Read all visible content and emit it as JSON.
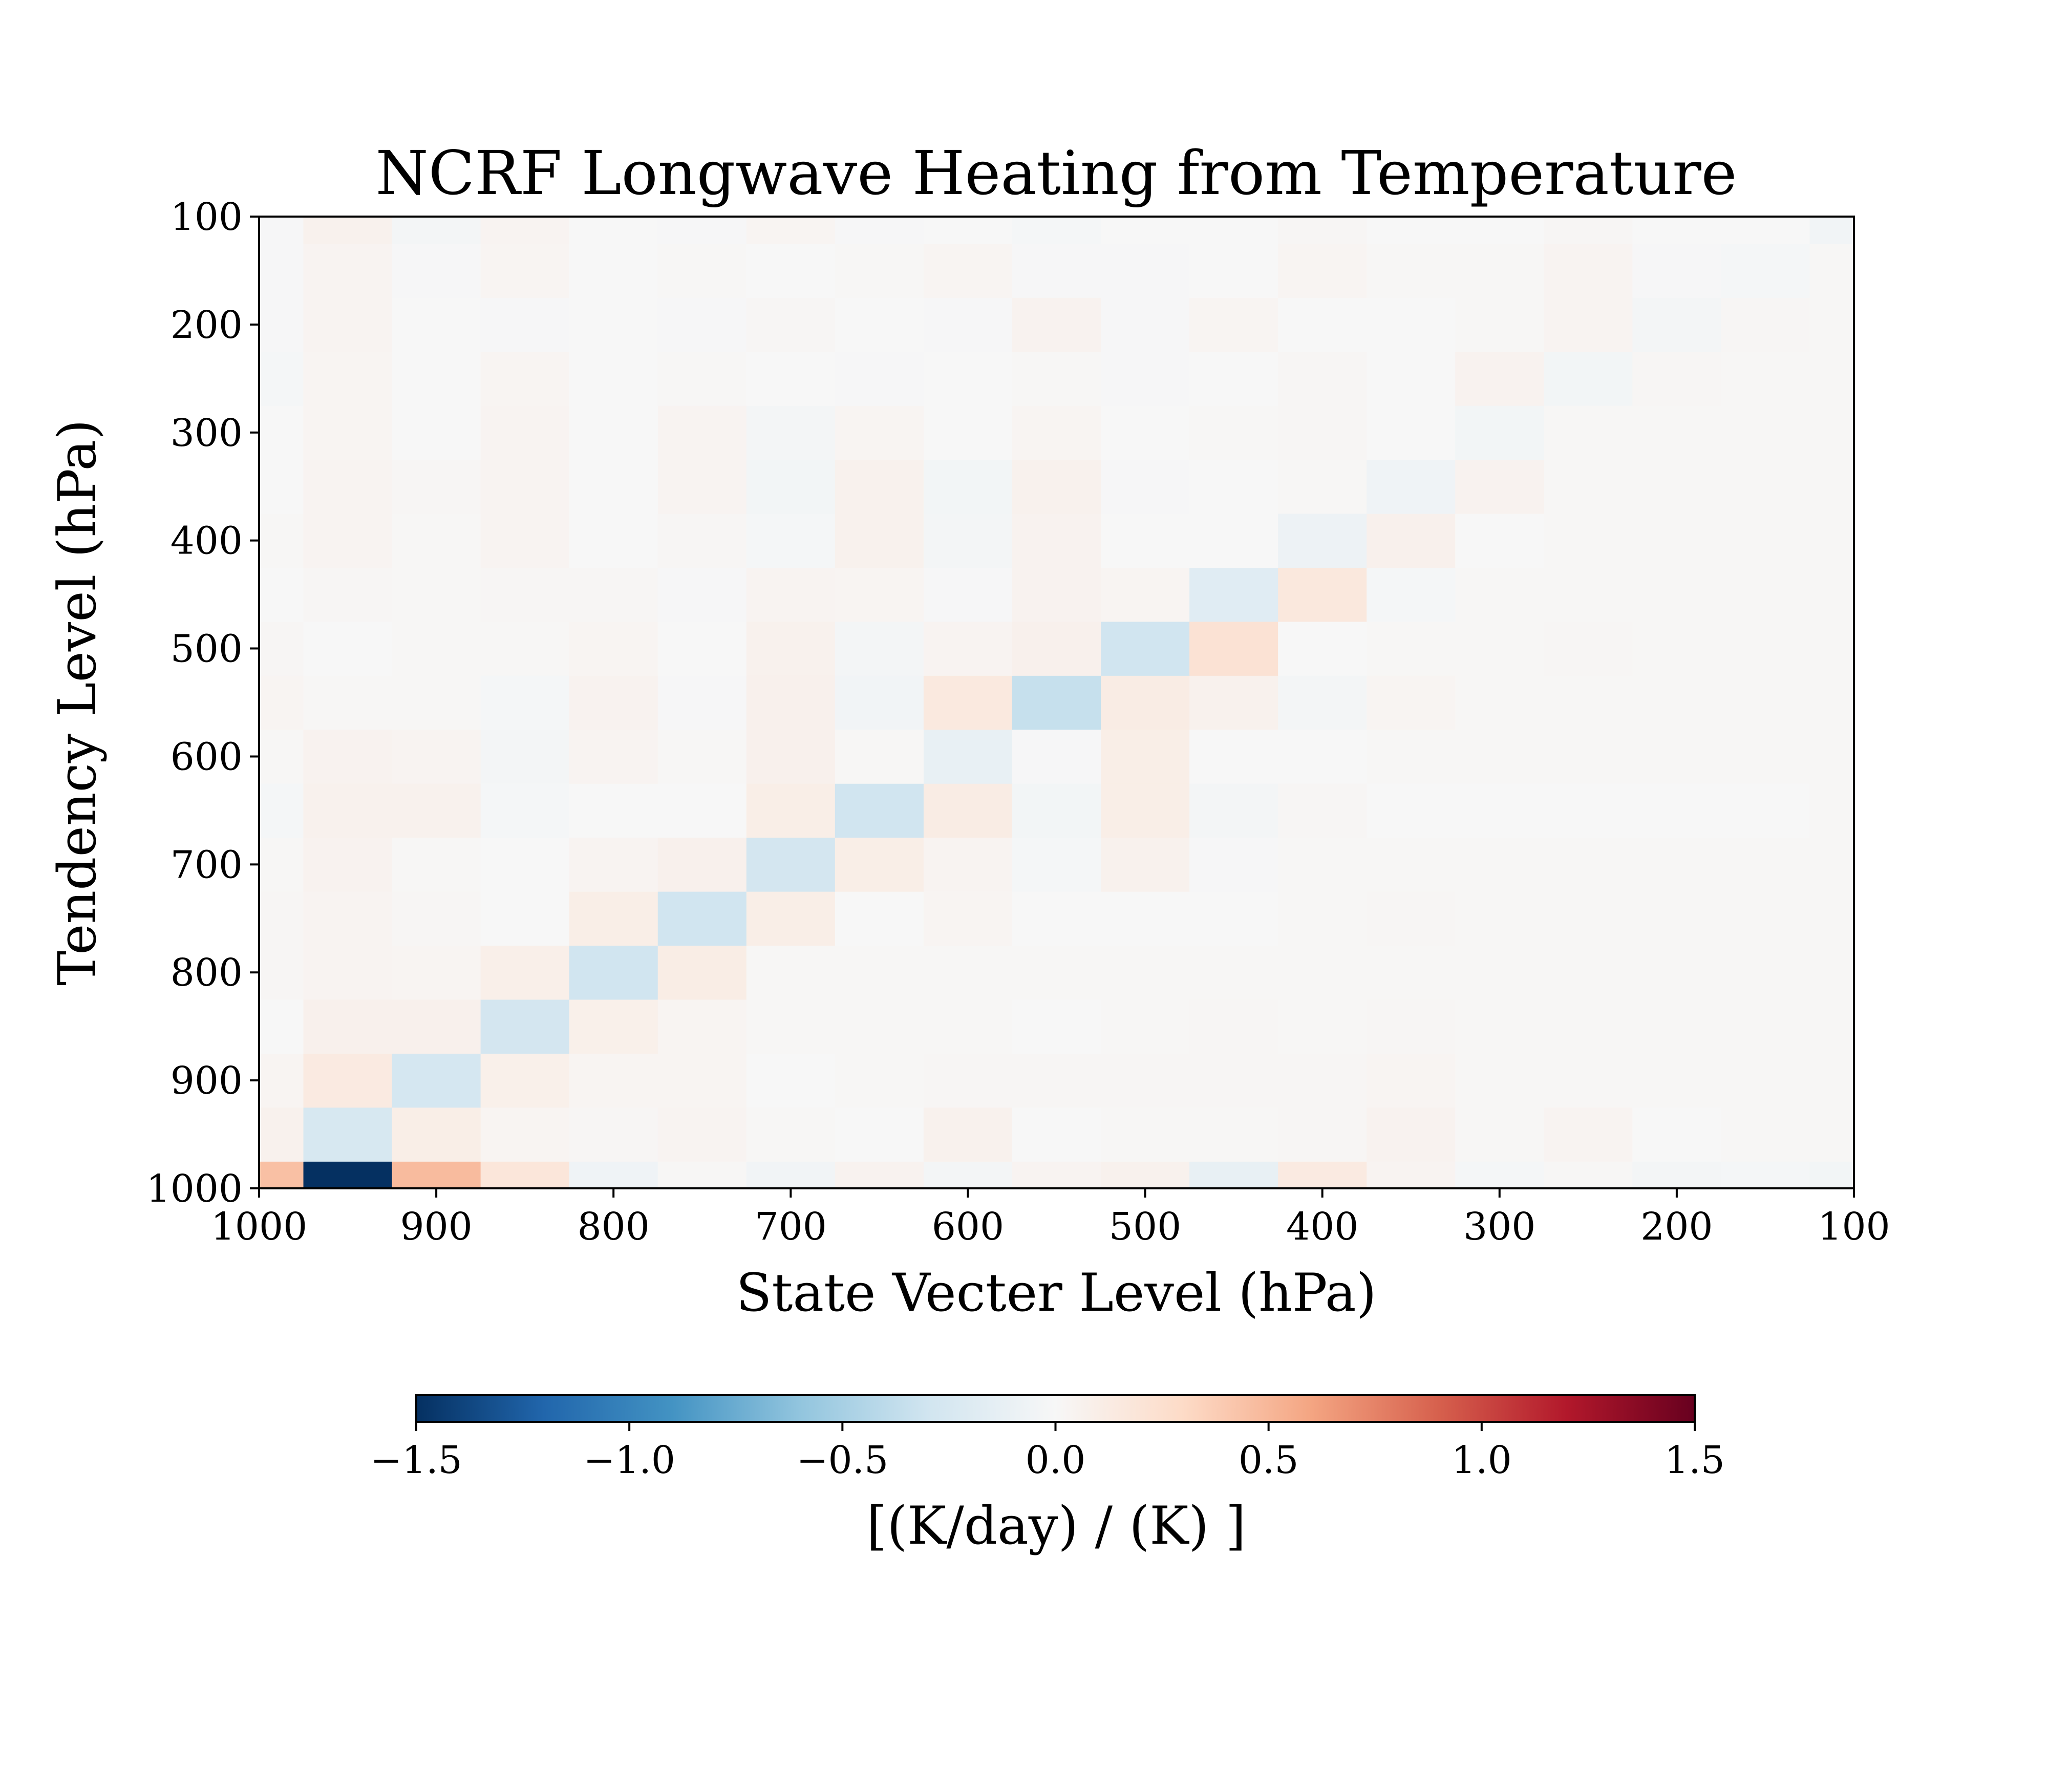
{
  "chart_data": {
    "type": "heatmap",
    "title": "NCRF Longwave Heating from Temperature",
    "xlabel": "State Vecter Level (hPa)",
    "ylabel": "Tendency Level (hPa)",
    "x_levels": [
      1000,
      950,
      900,
      850,
      800,
      750,
      700,
      650,
      600,
      550,
      500,
      450,
      400,
      350,
      300,
      250,
      200,
      150,
      100
    ],
    "y_levels": [
      1000,
      950,
      900,
      850,
      800,
      750,
      700,
      650,
      600,
      550,
      500,
      450,
      400,
      350,
      300,
      250,
      200,
      150,
      100
    ],
    "xlim": [
      1000,
      100
    ],
    "ylim": [
      1000,
      100
    ],
    "x_ticks": [
      "1000",
      "900",
      "800",
      "700",
      "600",
      "500",
      "400",
      "300",
      "200",
      "100"
    ],
    "y_ticks": [
      "100",
      "200",
      "300",
      "400",
      "500",
      "600",
      "700",
      "800",
      "900",
      "1000"
    ],
    "colormap": "RdBu_r",
    "vmin": -1.5,
    "vmax": 1.5,
    "colorbar": {
      "label": "[(K/day) / (K) ]",
      "ticks": [
        "−1.5",
        "−1.0",
        "−0.5",
        "0.0",
        "0.5",
        "1.0",
        "1.5"
      ],
      "orientation": "horizontal",
      "placement": "bottom"
    },
    "values": [
      [
        0.45,
        -1.5,
        0.48,
        0.18,
        -0.06,
        0.01,
        -0.05,
        0.05,
        -0.03,
        0.04,
        0.06,
        -0.12,
        0.14,
        0.04,
        -0.02,
        0.01,
        -0.03,
        -0.02,
        -0.04
      ],
      [
        0.06,
        -0.25,
        0.1,
        0.03,
        0.02,
        0.04,
        0.01,
        0.0,
        0.06,
        0.0,
        0.01,
        0.01,
        0.02,
        0.05,
        0.01,
        0.04,
        0.0,
        0.01,
        0.01
      ],
      [
        0.03,
        0.14,
        -0.27,
        0.08,
        0.03,
        0.03,
        0.0,
        0.01,
        0.02,
        0.02,
        0.02,
        0.02,
        0.02,
        0.03,
        0.01,
        0.01,
        0.01,
        0.01,
        0.01
      ],
      [
        0.0,
        0.07,
        0.07,
        -0.28,
        0.08,
        0.03,
        0.01,
        0.01,
        0.01,
        0.0,
        0.01,
        0.02,
        0.01,
        0.02,
        0.01,
        0.01,
        0.01,
        0.01,
        0.01
      ],
      [
        0.02,
        0.04,
        0.03,
        0.09,
        -0.3,
        0.11,
        0.01,
        0.01,
        0.01,
        0.01,
        0.01,
        0.01,
        0.01,
        0.01,
        0.01,
        0.01,
        0.01,
        0.01,
        0.01
      ],
      [
        0.02,
        0.04,
        0.02,
        0.0,
        0.1,
        -0.3,
        0.1,
        0.0,
        0.03,
        0.0,
        0.0,
        0.0,
        0.01,
        0.02,
        0.01,
        0.01,
        0.01,
        0.01,
        0.01
      ],
      [
        0.01,
        0.05,
        0.01,
        0.0,
        0.04,
        0.07,
        -0.28,
        0.1,
        0.04,
        -0.02,
        0.06,
        -0.01,
        0.01,
        0.01,
        0.01,
        0.01,
        0.01,
        0.01,
        0.01
      ],
      [
        -0.02,
        0.06,
        0.06,
        -0.02,
        0.0,
        0.0,
        0.1,
        -0.3,
        0.12,
        -0.04,
        0.1,
        -0.03,
        0.02,
        0.0,
        0.0,
        0.0,
        0.0,
        0.0,
        0.01
      ],
      [
        0.01,
        0.05,
        0.04,
        -0.03,
        0.04,
        0.01,
        0.07,
        0.01,
        -0.12,
        -0.01,
        0.1,
        0.0,
        0.0,
        0.01,
        0.01,
        0.01,
        0.01,
        0.01,
        0.01
      ],
      [
        0.03,
        0.01,
        0.01,
        -0.02,
        0.05,
        -0.01,
        0.07,
        -0.05,
        0.15,
        -0.35,
        0.12,
        0.06,
        -0.03,
        0.03,
        0.01,
        0.01,
        0.01,
        0.01,
        0.01
      ],
      [
        0.02,
        0.0,
        0.01,
        0.01,
        0.03,
        0.0,
        0.06,
        -0.03,
        0.04,
        0.07,
        -0.3,
        0.22,
        0.0,
        0.01,
        0.01,
        0.02,
        0.01,
        0.01,
        0.01
      ],
      [
        0.0,
        0.02,
        0.01,
        0.02,
        0.02,
        -0.01,
        0.04,
        0.03,
        -0.01,
        0.05,
        0.03,
        -0.18,
        0.16,
        -0.02,
        0.01,
        0.01,
        0.01,
        0.01,
        0.01
      ],
      [
        0.01,
        0.04,
        0.01,
        0.04,
        0.0,
        0.02,
        -0.02,
        0.06,
        -0.03,
        0.05,
        0.0,
        0.0,
        -0.08,
        0.07,
        0.0,
        0.01,
        0.01,
        0.01,
        0.01
      ],
      [
        0.0,
        0.04,
        0.02,
        0.04,
        0.0,
        0.04,
        -0.04,
        0.06,
        -0.04,
        0.06,
        -0.01,
        0.0,
        0.01,
        -0.06,
        0.05,
        0.01,
        0.01,
        0.01,
        0.01
      ],
      [
        0.0,
        0.03,
        0.0,
        0.04,
        0.0,
        0.04,
        -0.03,
        0.03,
        0.0,
        0.03,
        0.0,
        0.01,
        0.02,
        0.0,
        -0.04,
        0.01,
        0.01,
        0.01,
        0.01
      ],
      [
        -0.02,
        0.03,
        0.0,
        0.03,
        0.0,
        0.01,
        0.0,
        -0.01,
        0.0,
        0.01,
        -0.01,
        0.0,
        0.02,
        0.0,
        0.05,
        -0.04,
        0.02,
        0.01,
        0.01
      ],
      [
        -0.01,
        0.04,
        0.0,
        -0.01,
        0.0,
        -0.01,
        0.02,
        0.0,
        -0.01,
        0.05,
        -0.01,
        0.03,
        0.0,
        0.0,
        0.01,
        0.04,
        -0.03,
        0.02,
        0.01
      ],
      [
        -0.01,
        0.04,
        -0.01,
        0.03,
        0.0,
        0.01,
        0.0,
        0.01,
        0.03,
        -0.01,
        -0.01,
        0.0,
        0.03,
        0.01,
        0.01,
        0.04,
        -0.01,
        -0.02,
        0.01
      ],
      [
        -0.01,
        0.06,
        -0.03,
        0.04,
        0.0,
        -0.01,
        0.03,
        -0.01,
        0.0,
        -0.02,
        0.0,
        0.0,
        0.02,
        0.0,
        0.0,
        0.02,
        0.0,
        0.0,
        -0.05
      ]
    ]
  }
}
